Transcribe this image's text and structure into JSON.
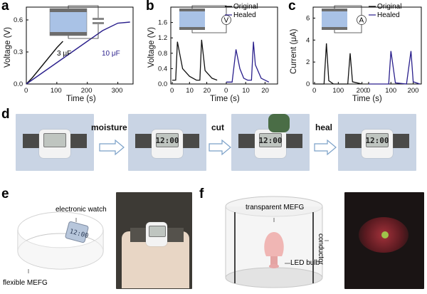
{
  "panels": {
    "a": {
      "label": "a",
      "xlabel": "Time (s)",
      "ylabel": "Voltage (V)",
      "xticks": [
        "0",
        "100",
        "200",
        "300"
      ],
      "yticks": [
        "0.0",
        "0.3",
        "0.6"
      ],
      "series_labels": [
        "3 μF",
        "10 μF"
      ]
    },
    "b": {
      "label": "b",
      "xlabel": "Time (s)",
      "ylabel": "Voltage (V)",
      "xticks": [
        "0",
        "10",
        "20",
        "0",
        "10",
        "20"
      ],
      "yticks": [
        "0.0",
        "0.4",
        "0.8",
        "1.2",
        "1.6"
      ],
      "legend": [
        "Original",
        "Healed"
      ],
      "meter_symbol": "V"
    },
    "c": {
      "label": "c",
      "xlabel": "Time (s)",
      "ylabel": "Current (μA)",
      "xticks": [
        "0",
        "100",
        "200",
        "0",
        "100",
        "200"
      ],
      "yticks": [
        "0",
        "2",
        "4",
        "6"
      ],
      "legend": [
        "Original",
        "Healed"
      ],
      "meter_symbol": "A"
    },
    "d": {
      "label": "d",
      "steps": [
        "moisture",
        "cut",
        "heal"
      ],
      "watch_times": [
        "",
        "12:00",
        "12:00",
        "12:00"
      ]
    },
    "e": {
      "label": "e",
      "annotations": [
        "electronic watch",
        "flexible MEFG"
      ],
      "watch_time": "12:00"
    },
    "f": {
      "label": "f",
      "annotations": [
        "transparent MEFG",
        "conductor",
        "LED bulb"
      ]
    }
  },
  "colors": {
    "original": "#111111",
    "healed": "#2a1f8c",
    "arrow_fill": "#ffffff",
    "arrow_stroke": "#7aa0c8"
  },
  "chart_data": [
    {
      "type": "line",
      "panel": "a",
      "xlabel": "Time (s)",
      "ylabel": "Voltage (V)",
      "xlim": [
        0,
        350
      ],
      "ylim": [
        0,
        0.72
      ],
      "series": [
        {
          "name": "3 μF",
          "x": [
            0,
            20,
            40,
            60,
            80,
            100,
            120
          ],
          "y": [
            0,
            0.06,
            0.13,
            0.2,
            0.27,
            0.34,
            0.4
          ]
        },
        {
          "name": "10 μF",
          "x": [
            0,
            50,
            100,
            150,
            200,
            250,
            300,
            340
          ],
          "y": [
            0,
            0.1,
            0.2,
            0.3,
            0.4,
            0.5,
            0.57,
            0.58
          ]
        }
      ]
    },
    {
      "type": "line",
      "panel": "b",
      "xlabel": "Time (s)",
      "ylabel": "Voltage (V)",
      "ylim": [
        0,
        2.0
      ],
      "series": [
        {
          "name": "Original",
          "x": [
            0,
            2,
            3,
            6,
            10,
            14,
            16,
            17,
            19,
            23,
            26
          ],
          "y": [
            0.1,
            0.1,
            1.1,
            0.4,
            0.2,
            0.1,
            0.1,
            1.15,
            0.35,
            0.15,
            0.1
          ]
        },
        {
          "name": "Healed",
          "x": [
            0,
            3,
            5,
            7,
            9,
            11,
            13,
            14,
            15,
            18,
            22
          ],
          "y": [
            0.05,
            0.05,
            0.9,
            0.4,
            0.15,
            0.1,
            0.1,
            1.1,
            0.5,
            0.15,
            0.05
          ]
        }
      ]
    },
    {
      "type": "line",
      "panel": "c",
      "xlabel": "Time (s)",
      "ylabel": "Current (μA)",
      "ylim": [
        0,
        7
      ],
      "series": [
        {
          "name": "Original",
          "x": [
            0,
            40,
            50,
            60,
            80,
            140,
            150,
            160,
            200
          ],
          "y": [
            0,
            0,
            3.7,
            0.3,
            0,
            0,
            2.8,
            0.2,
            0
          ]
        },
        {
          "name": "Healed",
          "x": [
            0,
            40,
            90,
            100,
            120,
            170,
            190,
            200,
            230
          ],
          "y": [
            0,
            0,
            0,
            3.0,
            0.1,
            0,
            3.0,
            0.2,
            0
          ]
        }
      ]
    }
  ]
}
